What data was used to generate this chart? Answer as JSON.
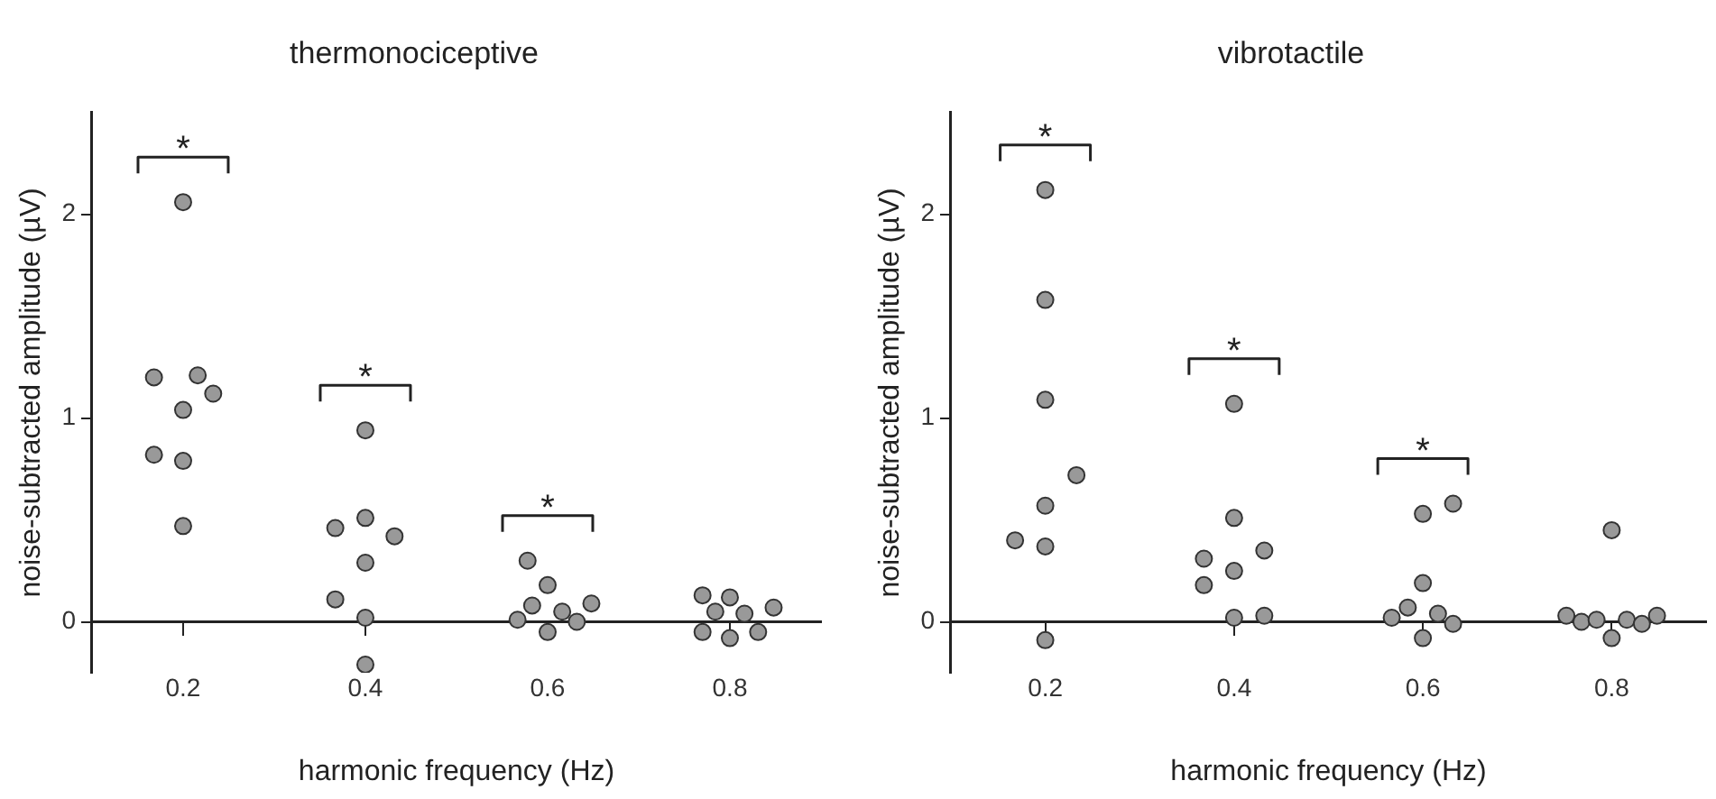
{
  "chart_data": [
    {
      "type": "scatter",
      "title": "thermonociceptive",
      "xlabel": "harmonic frequency (Hz)",
      "ylabel": "noise-subtracted amplitude (µV)",
      "color": "#999999",
      "marker": "circle",
      "grid": false,
      "legend": false,
      "xlim": [
        0.1,
        0.9
      ],
      "ylim": [
        -0.25,
        2.5
      ],
      "xticks": [
        0.2,
        0.4,
        0.6,
        0.8
      ],
      "yticks": [
        0,
        1,
        2
      ],
      "x": [
        0.2,
        0.168,
        0.216,
        0.233,
        0.2,
        0.168,
        0.2,
        0.2,
        0.4,
        0.367,
        0.4,
        0.432,
        0.4,
        0.367,
        0.4,
        0.4,
        0.578,
        0.6,
        0.583,
        0.616,
        0.648,
        0.567,
        0.632,
        0.6,
        0.77,
        0.8,
        0.784,
        0.816,
        0.848,
        0.77,
        0.8,
        0.831
      ],
      "values": [
        2.06,
        1.2,
        1.21,
        1.12,
        1.04,
        0.82,
        0.79,
        0.47,
        0.94,
        0.46,
        0.51,
        0.42,
        0.29,
        0.11,
        0.02,
        -0.21,
        0.3,
        0.18,
        0.08,
        0.05,
        0.09,
        0.01,
        0,
        -0.05,
        0.13,
        0.12,
        0.05,
        0.04,
        0.07,
        -0.05,
        -0.08,
        -0.05
      ],
      "annotations": [
        "*",
        "*",
        "*"
      ]
    },
    {
      "type": "scatter",
      "title": "vibrotactile",
      "xlabel": "harmonic frequency (Hz)",
      "ylabel": "noise-subtracted amplitude (µV)",
      "color": "#999999",
      "marker": "circle",
      "grid": false,
      "legend": false,
      "xlim": [
        0.1,
        0.9
      ],
      "ylim": [
        -0.25,
        2.5
      ],
      "xticks": [
        0.2,
        0.4,
        0.6,
        0.8
      ],
      "yticks": [
        0,
        1,
        2
      ],
      "x": [
        0.2,
        0.2,
        0.2,
        0.233,
        0.2,
        0.168,
        0.2,
        0.2,
        0.4,
        0.4,
        0.368,
        0.432,
        0.4,
        0.368,
        0.4,
        0.432,
        0.6,
        0.632,
        0.6,
        0.584,
        0.567,
        0.616,
        0.632,
        0.6,
        0.8,
        0.752,
        0.768,
        0.784,
        0.816,
        0.832,
        0.848,
        0.8
      ],
      "values": [
        2.12,
        1.58,
        1.09,
        0.72,
        0.57,
        0.4,
        0.37,
        -0.09,
        1.07,
        0.51,
        0.31,
        0.35,
        0.25,
        0.18,
        0.02,
        0.03,
        0.53,
        0.58,
        0.19,
        0.07,
        0.02,
        0.04,
        -0.01,
        -0.08,
        0.45,
        0.03,
        0,
        0.01,
        0.01,
        -0.01,
        0.03,
        -0.08
      ],
      "annotations": [
        "*",
        "*",
        "*"
      ]
    }
  ]
}
